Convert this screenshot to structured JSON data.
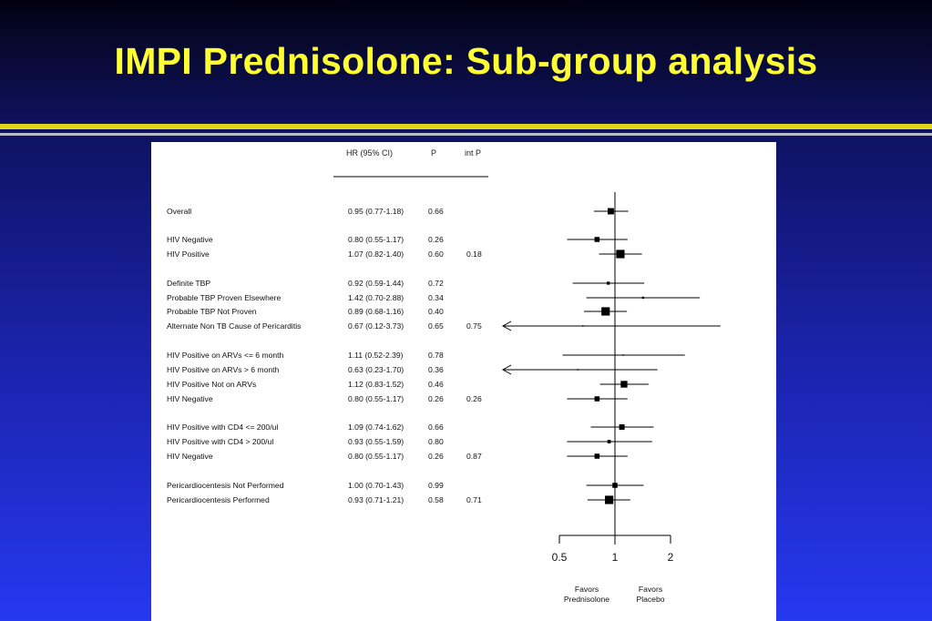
{
  "slide": {
    "title": "IMPI Prednisolone: Sub-group analysis"
  },
  "colors": {
    "title": "#ffff33",
    "rule_gold": "#e3d41c",
    "rule_gray": "#b8bcc8",
    "panel_bg": "#ffffff",
    "ink": "#000000"
  },
  "chart_data": {
    "type": "forest",
    "x_scale": "log",
    "xlim": [
      0.5,
      2
    ],
    "reference_line": 1,
    "columns": {
      "hr": "HR (95% CI)",
      "p": "P",
      "int_p": "int P"
    },
    "x_ticks": [
      "0.5",
      "1",
      "2"
    ],
    "favors_left": [
      "Favors",
      "Prednisolone"
    ],
    "favors_right": [
      "Favors",
      "Placebo"
    ],
    "rows": [
      {
        "label": "Overall",
        "hr_text": "0.95 (0.77-1.18)",
        "p": "0.66",
        "int_p": "",
        "hr": 0.95,
        "lo": 0.77,
        "hi": 1.18,
        "weight": 0.6
      },
      {
        "label": "HIV Negative",
        "hr_text": "0.80 (0.55-1.17)",
        "p": "0.26",
        "int_p": "",
        "hr": 0.8,
        "lo": 0.55,
        "hi": 1.17,
        "weight": 0.45
      },
      {
        "label": "HIV Positive",
        "hr_text": "1.07 (0.82-1.40)",
        "p": "0.60",
        "int_p": "0.18",
        "hr": 1.07,
        "lo": 0.82,
        "hi": 1.4,
        "weight": 0.85
      },
      {
        "label": "Definite TBP",
        "hr_text": "0.92 (0.59-1.44)",
        "p": "0.72",
        "int_p": "",
        "hr": 0.92,
        "lo": 0.59,
        "hi": 1.44,
        "weight": 0.2
      },
      {
        "label": "Probable TBP Proven Elsewhere",
        "hr_text": "1.42 (0.70-2.88)",
        "p": "0.34",
        "int_p": "",
        "hr": 1.42,
        "lo": 0.7,
        "hi": 2.88,
        "weight": 0.1
      },
      {
        "label": "Probable TBP Not Proven",
        "hr_text": "0.89 (0.68-1.16)",
        "p": "0.40",
        "int_p": "",
        "hr": 0.89,
        "lo": 0.68,
        "hi": 1.16,
        "weight": 0.85
      },
      {
        "label": "Alternate Non TB Cause of Pericarditis",
        "hr_text": "0.67 (0.12-3.73)",
        "p": "0.65",
        "int_p": "0.75",
        "hr": 0.67,
        "lo": 0.12,
        "hi": 3.73,
        "weight": 0
      },
      {
        "label": "HIV Positive on ARVs <= 6 month",
        "hr_text": "1.11 (0.52-2.39)",
        "p": "0.78",
        "int_p": "",
        "hr": 1.11,
        "lo": 0.52,
        "hi": 2.39,
        "weight": 0
      },
      {
        "label": "HIV Positive on ARVs > 6 month",
        "hr_text": "0.63 (0.23-1.70)",
        "p": "0.36",
        "int_p": "",
        "hr": 0.63,
        "lo": 0.23,
        "hi": 1.7,
        "weight": 0
      },
      {
        "label": "HIV Positive Not on ARVs",
        "hr_text": "1.12 (0.83-1.52)",
        "p": "0.46",
        "int_p": "",
        "hr": 1.12,
        "lo": 0.83,
        "hi": 1.52,
        "weight": 0.65
      },
      {
        "label": "HIV Negative",
        "hr_text": "0.80 (0.55-1.17)",
        "p": "0.26",
        "int_p": "0.26",
        "hr": 0.8,
        "lo": 0.55,
        "hi": 1.17,
        "weight": 0.45
      },
      {
        "label": "HIV Positive with CD4 <= 200/ul",
        "hr_text": "1.09 (0.74-1.62)",
        "p": "0.66",
        "int_p": "",
        "hr": 1.09,
        "lo": 0.74,
        "hi": 1.62,
        "weight": 0.5
      },
      {
        "label": "HIV Positive with CD4 > 200/ul",
        "hr_text": "0.93 (0.55-1.59)",
        "p": "0.80",
        "int_p": "",
        "hr": 0.93,
        "lo": 0.55,
        "hi": 1.59,
        "weight": 0.25
      },
      {
        "label": "HIV Negative",
        "hr_text": "0.80 (0.55-1.17)",
        "p": "0.26",
        "int_p": "0.87",
        "hr": 0.8,
        "lo": 0.55,
        "hi": 1.17,
        "weight": 0.45
      },
      {
        "label": "Pericardiocentesis Not Performed",
        "hr_text": "1.00 (0.70-1.43)",
        "p": "0.99",
        "int_p": "",
        "hr": 1.0,
        "lo": 0.7,
        "hi": 1.43,
        "weight": 0.45
      },
      {
        "label": "Pericardiocentesis Performed",
        "hr_text": "0.93 (0.71-1.21)",
        "p": "0.58",
        "int_p": "0.71",
        "hr": 0.93,
        "lo": 0.71,
        "hi": 1.21,
        "weight": 0.85
      }
    ]
  }
}
